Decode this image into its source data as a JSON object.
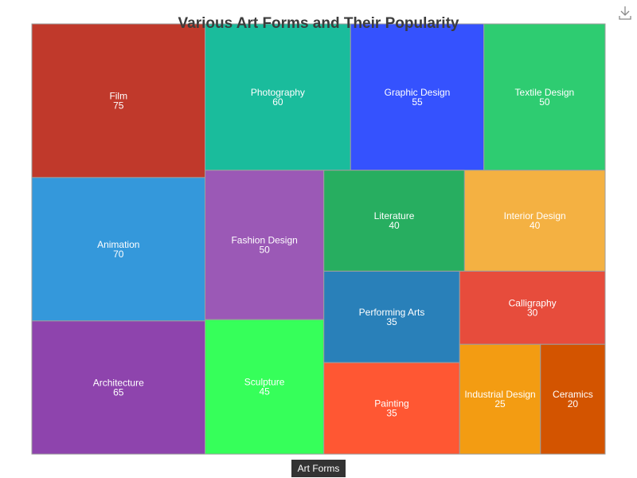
{
  "chart_data": {
    "type": "treemap",
    "title": "Various Art Forms and Their Popularity",
    "root_label": "Art Forms",
    "items": [
      {
        "name": "Film",
        "value": 75,
        "color": "#c0392b"
      },
      {
        "name": "Animation",
        "value": 70,
        "color": "#3498db"
      },
      {
        "name": "Architecture",
        "value": 65,
        "color": "#8e44ad"
      },
      {
        "name": "Photography",
        "value": 60,
        "color": "#1abc9c"
      },
      {
        "name": "Graphic Design",
        "value": 55,
        "color": "#3552fe"
      },
      {
        "name": "Textile Design",
        "value": 50,
        "color": "#2ecc71"
      },
      {
        "name": "Fashion Design",
        "value": 50,
        "color": "#9b59b6"
      },
      {
        "name": "Sculpture",
        "value": 45,
        "color": "#36ff5a"
      },
      {
        "name": "Literature",
        "value": 40,
        "color": "#27ae60"
      },
      {
        "name": "Interior Design",
        "value": 40,
        "color": "#f4b142"
      },
      {
        "name": "Performing Arts",
        "value": 35,
        "color": "#2980b9"
      },
      {
        "name": "Painting",
        "value": 35,
        "color": "#ff5733"
      },
      {
        "name": "Calligraphy",
        "value": 30,
        "color": "#e74c3c"
      },
      {
        "name": "Industrial Design",
        "value": 25,
        "color": "#f39c12"
      },
      {
        "name": "Ceramics",
        "value": 20,
        "color": "#d35400"
      }
    ]
  }
}
